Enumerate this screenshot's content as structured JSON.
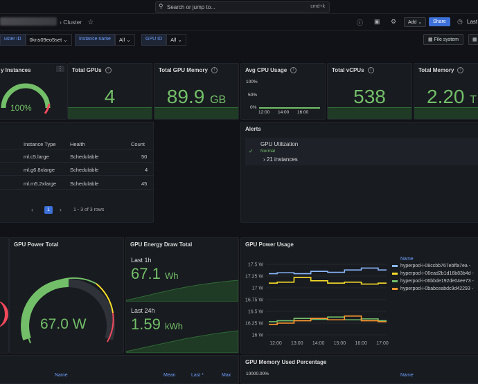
{
  "topbar": {
    "search_placeholder": "Search or jump to...",
    "search_shortcut": "cmd+k"
  },
  "breadcrumb": {
    "current": "Cluster"
  },
  "toolbar": {
    "add_label": "Add",
    "share_label": "Share",
    "time_label": "Last",
    "filesystem_label": "File system"
  },
  "variables": [
    {
      "label": "uster ID",
      "value": "0kns09eo5set"
    },
    {
      "label": "Instance name",
      "value": "All"
    },
    {
      "label": "GPU ID",
      "value": "All"
    }
  ],
  "panels": {
    "healthy": {
      "title": "y Instances",
      "value": "100%"
    },
    "total_gpus": {
      "title": "Total GPUs",
      "value": "4"
    },
    "total_gpu_memory": {
      "title": "Total GPU Memory",
      "value": "89.9",
      "unit": "GB"
    },
    "avg_cpu": {
      "title": "Avg CPU Usage",
      "y_ticks": [
        "100%",
        "50%",
        "0%"
      ],
      "x_ticks": [
        "12:00",
        "14:00",
        "16:00"
      ]
    },
    "total_vcpus": {
      "title": "Total vCPUs",
      "value": "538"
    },
    "total_memory": {
      "title": "Total Memory",
      "value": "2.20",
      "unit": "T"
    },
    "alerts": {
      "title": "Alerts",
      "rule": "GPU Utilization",
      "state": "Normal",
      "instances": "21 instances"
    },
    "gpu_power_total": {
      "title": "GPU Power Total",
      "value": "67.0 W"
    },
    "gpu_energy": {
      "title": "GPU Energy Draw Total",
      "last1h_label": "Last 1h",
      "last1h_value": "67.1",
      "last1h_unit": "Wh",
      "last24h_label": "Last 24h",
      "last24h_value": "1.59",
      "last24h_unit": "kWh"
    },
    "gpu_power_usage": {
      "title": "GPU Power Usage",
      "legend_header": "Name"
    },
    "gpu_mem_pct": {
      "title": "GPU Memory Used Percentage",
      "y_top": "10000.00%"
    },
    "bottom_left": {
      "name_header": "Name",
      "mean_header": "Mean",
      "last_header": "Last *",
      "max_header": "Max"
    }
  },
  "instance_table": {
    "headers": [
      "Instance Type",
      "Health",
      "Count"
    ],
    "rows": [
      [
        "ml.c5.large",
        "Schedulable",
        "50"
      ],
      [
        "ml.g6.8xlarge",
        "Schedulable",
        "4"
      ],
      [
        "ml.m5.2xlarge",
        "Schedulable",
        "45"
      ]
    ],
    "page": "1",
    "range": "1 - 3 of 3 rows"
  },
  "chart_data": {
    "type": "line",
    "title": "GPU Power Usage",
    "x_ticks": [
      "12:00",
      "13:00",
      "14:00",
      "15:00",
      "16:00",
      "17:00"
    ],
    "y_ticks": [
      "17.5 W",
      "17.25 W",
      "17 W",
      "16.75 W",
      "16.5 W",
      "16.25 W",
      "16 W"
    ],
    "ylim": [
      16,
      17.5
    ],
    "series": [
      {
        "name": "hyperpod-i-08ccbb767ebffa7ea - ",
        "color": "#8ab8ff",
        "values": [
          17.3,
          17.32,
          17.3,
          17.35,
          17.33,
          17.38,
          17.42,
          17.38
        ]
      },
      {
        "name": "hyperpod-i-06ead2b1d16b83b4d - ",
        "color": "#fade2a",
        "values": [
          17.1,
          17.12,
          17.22,
          17.15,
          17.1,
          17.12,
          17.08,
          17.1
        ]
      },
      {
        "name": "hyperpod-i-06bbde192de04ee73 - ",
        "color": "#73bf69",
        "values": [
          16.28,
          16.3,
          16.35,
          16.33,
          16.38,
          16.32,
          16.34,
          16.3
        ]
      },
      {
        "name": "hyperpod-i-0babceabdc9d42293 - ",
        "color": "#ff9830",
        "values": [
          16.22,
          16.25,
          16.3,
          16.35,
          16.32,
          16.4,
          16.3,
          16.28
        ]
      }
    ]
  }
}
